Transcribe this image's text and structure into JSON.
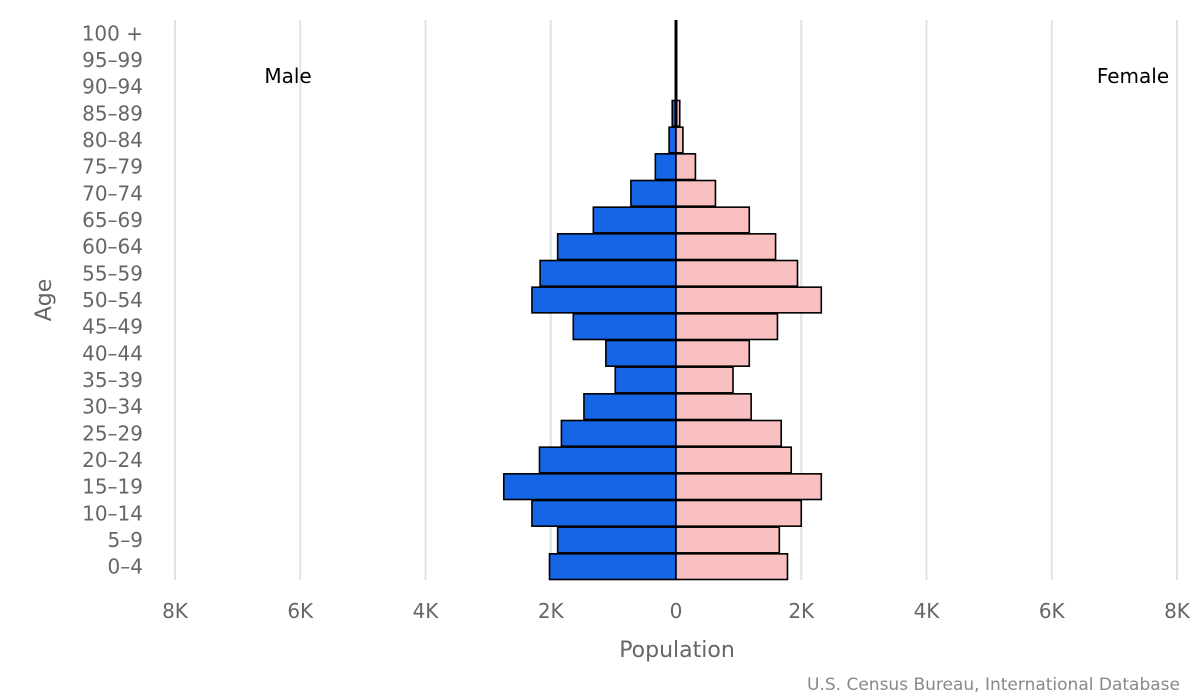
{
  "chart_data": {
    "type": "bar",
    "orientation": "horizontal",
    "xlabel": "Population",
    "ylabel": "Age",
    "xlim": [
      -8000,
      8000
    ],
    "x_ticks": [
      "8K",
      "6K",
      "4K",
      "2K",
      "0",
      "2K",
      "4K",
      "6K",
      "8K"
    ],
    "categories": [
      "100 +",
      "95-99",
      "90-94",
      "85-89",
      "80-84",
      "75-79",
      "70-74",
      "65-69",
      "60-64",
      "55-59",
      "50-54",
      "45-49",
      "40-44",
      "35-39",
      "30-34",
      "25-29",
      "20-24",
      "15-19",
      "10-14",
      "5-9",
      "0-4"
    ],
    "series": [
      {
        "name": "Male",
        "color": "#1565e6",
        "values": [
          0,
          0,
          10,
          60,
          110,
          330,
          720,
          1320,
          1890,
          2170,
          2300,
          1640,
          1120,
          970,
          1470,
          1830,
          2180,
          2750,
          2300,
          1890,
          2020
        ]
      },
      {
        "name": "Female",
        "color": "#f9c0c1",
        "values": [
          0,
          0,
          10,
          60,
          110,
          310,
          630,
          1170,
          1590,
          1940,
          2320,
          1620,
          1170,
          910,
          1200,
          1680,
          1840,
          2320,
          2000,
          1650,
          1780
        ]
      }
    ],
    "grid": true
  },
  "labels": {
    "male": "Male",
    "female": "Female",
    "credit": "U.S. Census Bureau, International Database"
  }
}
